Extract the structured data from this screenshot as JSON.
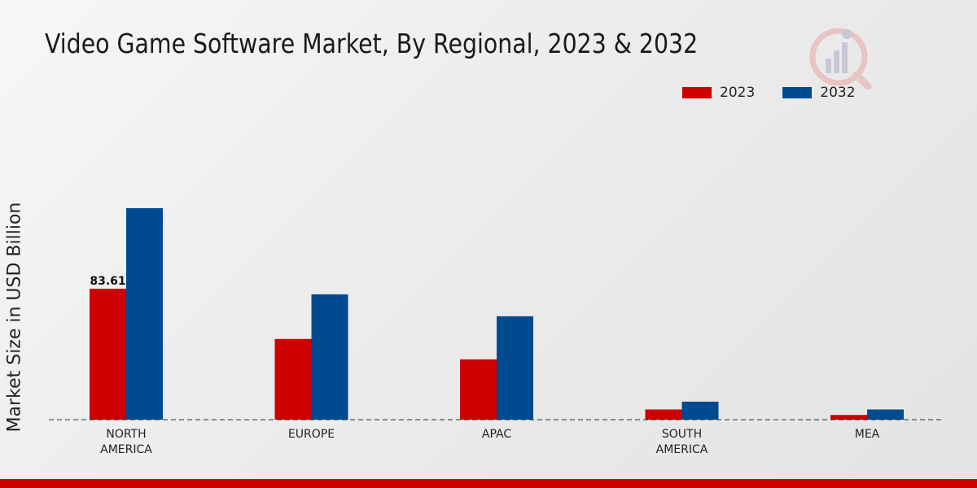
{
  "chart_data": {
    "type": "bar",
    "title": "Video Game Software Market, By Regional, 2023 & 2032",
    "ylabel": "Market Size in USD Billion",
    "xlabel": "",
    "categories": [
      "NORTH AMERICA",
      "EUROPE",
      "APAC",
      "SOUTH AMERICA",
      "MEA"
    ],
    "series": [
      {
        "name": "2023",
        "color": "#cc0000",
        "values": [
          83.61,
          51.5,
          38.5,
          6.5,
          3.0
        ]
      },
      {
        "name": "2032",
        "color": "#004a8f",
        "values": [
          135.0,
          80.0,
          66.0,
          11.5,
          6.5
        ]
      }
    ],
    "data_labels": [
      {
        "series": 0,
        "index": 0,
        "text": "83.61"
      }
    ],
    "ylim": [
      0,
      190
    ],
    "grid": false,
    "legend_position": "top-right"
  }
}
